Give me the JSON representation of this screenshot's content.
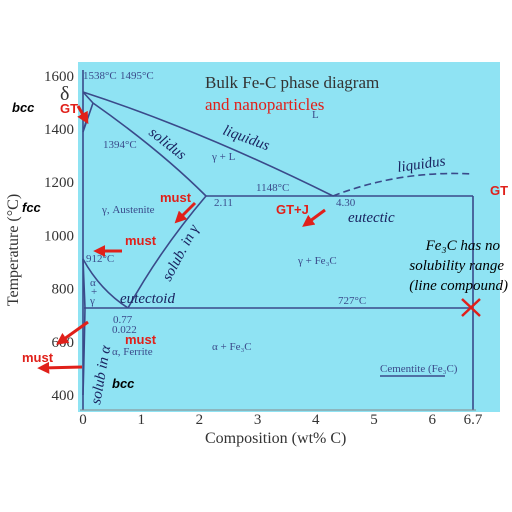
{
  "title": "Bulk Fe-C phase diagram",
  "subtitle": "and nanoparticles",
  "axes": {
    "x_label": "Composition (wt% C)",
    "y_label": "Temperature (°C)",
    "x_ticks": [
      0,
      1,
      2,
      3,
      4,
      5,
      6,
      6.7
    ],
    "y_ticks": [
      400,
      600,
      800,
      1000,
      1200,
      1400,
      1600
    ]
  },
  "labels": {
    "t1538": "1538°C",
    "t1495": "1495°C",
    "t1394": "1394°C",
    "L": "L",
    "gL": "γ + L",
    "liquidus1": "liquidus",
    "solidus": "solidus",
    "liquidus2": "liquidus",
    "t1148": "1148°C",
    "c211": "2.11",
    "c430": "4.30",
    "austenite": "γ, Austenite",
    "gFe3C": "γ + Fe₃C",
    "t912": "912°C",
    "alpha": "α",
    "plus": "+",
    "gamma": "γ",
    "t727": "727°C",
    "c077": "0.77",
    "c0022": "0.022",
    "ferrite": "α, Ferrite",
    "aFe3C": "α + Fe₃C",
    "cementite": "Cementite (Fe₃C)",
    "eutectoid": "eutectoid",
    "eutectic": "eutectic",
    "solub_g": "solub. in γ",
    "solub_a": "solub in α",
    "delta": "δ",
    "fe3c_1": "Fe₃C has no",
    "fe3c_2": "solubility range",
    "fe3c_3": "(line compound)"
  },
  "annotations": {
    "gt_left": "GT",
    "gt_right": "GT",
    "gtj": "GT+J",
    "must1": "must",
    "must2": "must",
    "must3": "must",
    "must4": "must",
    "bcc_top": "bcc",
    "fcc": "fcc",
    "bcc_bottom": "bcc"
  }
}
